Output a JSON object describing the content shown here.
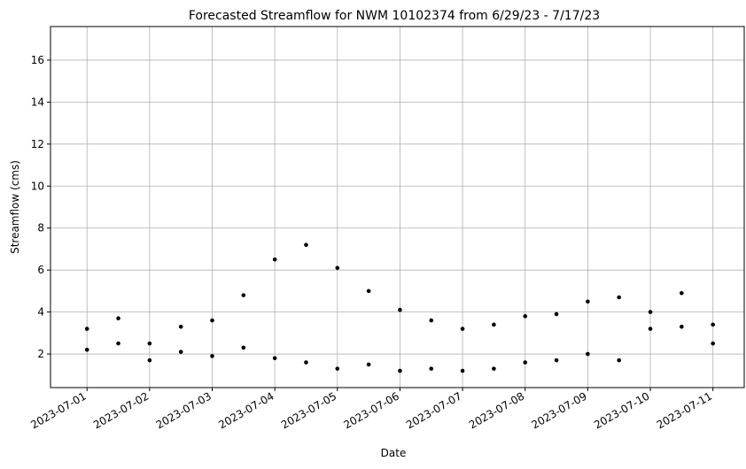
{
  "chart_data": {
    "type": "scatter",
    "title": "Forecasted Streamflow for NWM 10102374 from 6/29/23 - 7/17/23",
    "xlabel": "Date",
    "ylabel": "Streamflow (cms)",
    "x_tick_labels": [
      "2023-07-01",
      "2023-07-02",
      "2023-07-03",
      "2023-07-04",
      "2023-07-05",
      "2023-07-06",
      "2023-07-07",
      "2023-07-08",
      "2023-07-09",
      "2023-07-10",
      "2023-07-11"
    ],
    "y_ticks": [
      2,
      4,
      6,
      8,
      10,
      12,
      14,
      16
    ],
    "xlim": [
      "2023-06-30T10:00",
      "2023-07-11T12:00"
    ],
    "ylim": [
      0.4,
      17.6
    ],
    "grid": true,
    "marker_color": "#000000",
    "series": [
      {
        "x": [
          "2023-07-01T00:00",
          "2023-07-01T12:00",
          "2023-07-02T00:00",
          "2023-07-02T12:00",
          "2023-07-03T00:00",
          "2023-07-03T12:00",
          "2023-07-04T00:00",
          "2023-07-04T12:00",
          "2023-07-05T00:00",
          "2023-07-05T12:00",
          "2023-07-06T00:00",
          "2023-07-06T12:00",
          "2023-07-07T00:00",
          "2023-07-07T12:00",
          "2023-07-08T00:00",
          "2023-07-08T12:00",
          "2023-07-09T00:00",
          "2023-07-09T12:00",
          "2023-07-10T00:00",
          "2023-07-10T12:00",
          "2023-07-11T00:00"
        ],
        "values": [
          3.2,
          3.7,
          2.5,
          3.3,
          3.6,
          4.8,
          6.5,
          7.2,
          6.1,
          5.0,
          4.1,
          3.6,
          3.2,
          3.4,
          3.8,
          3.9,
          4.5,
          4.7,
          4.0,
          4.9,
          3.4
        ]
      },
      {
        "x": [
          "2023-07-01T00:00",
          "2023-07-01T12:00",
          "2023-07-02T00:00",
          "2023-07-02T12:00",
          "2023-07-03T00:00",
          "2023-07-03T12:00",
          "2023-07-04T00:00",
          "2023-07-04T12:00",
          "2023-07-05T00:00",
          "2023-07-05T12:00",
          "2023-07-06T00:00",
          "2023-07-06T12:00",
          "2023-07-07T00:00",
          "2023-07-07T12:00",
          "2023-07-08T00:00",
          "2023-07-08T12:00",
          "2023-07-09T00:00",
          "2023-07-09T12:00",
          "2023-07-10T00:00",
          "2023-07-10T12:00",
          "2023-07-11T00:00"
        ],
        "values": [
          2.2,
          2.5,
          1.7,
          2.1,
          1.9,
          2.3,
          1.8,
          1.6,
          1.3,
          1.5,
          1.2,
          1.3,
          1.2,
          1.3,
          1.6,
          1.7,
          2.0,
          1.7,
          3.2,
          3.3,
          2.5
        ]
      }
    ]
  }
}
